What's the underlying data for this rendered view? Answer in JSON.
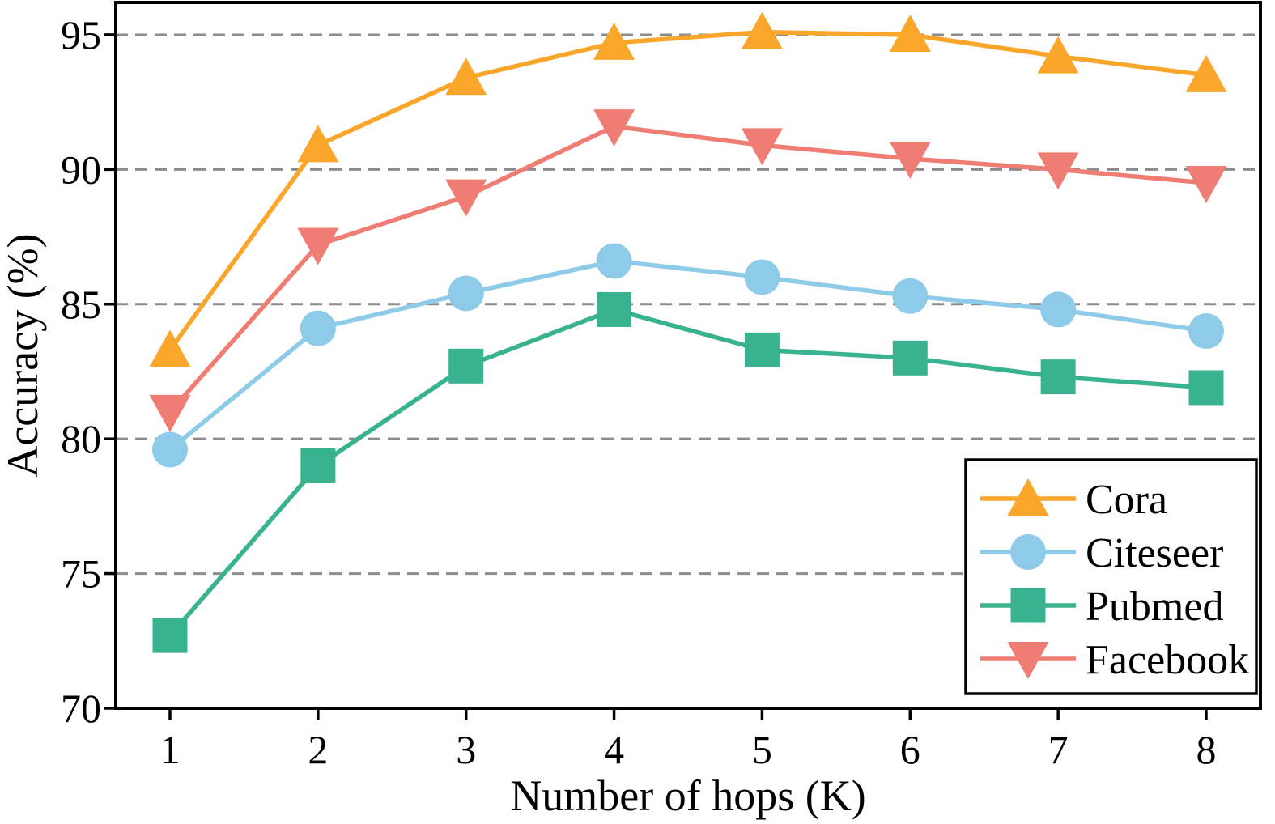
{
  "figure": {
    "background": "#FFFFFF",
    "description": "Line chart of accuracy versus number of hops (K) for four graph datasets"
  },
  "chart_data": {
    "type": "line",
    "title": "",
    "xlabel": "Number of hops (K)",
    "ylabel": "Accuracy (%)",
    "x": [
      1,
      2,
      3,
      4,
      5,
      6,
      7,
      8
    ],
    "xtick_labels": [
      "1",
      "2",
      "3",
      "4",
      "5",
      "6",
      "7",
      "8"
    ],
    "yticks": [
      70,
      75,
      80,
      85,
      90,
      95
    ],
    "ytick_labels": [
      "70",
      "75",
      "80",
      "85",
      "90",
      "95"
    ],
    "ylim": [
      70,
      96.2
    ],
    "grid": {
      "horizontal": true,
      "style": "dashed",
      "color": "#8C8C8C"
    },
    "legend_position": "lower right",
    "series": [
      {
        "name": "Cora",
        "marker": "triangle-up",
        "color": "#F9A62B",
        "values": [
          83.3,
          90.9,
          93.4,
          94.7,
          95.1,
          95.0,
          94.2,
          93.5
        ]
      },
      {
        "name": "Citeseer",
        "marker": "circle",
        "color": "#8DCBE9",
        "values": [
          79.6,
          84.1,
          85.4,
          86.6,
          86.0,
          85.3,
          84.8,
          84.0
        ]
      },
      {
        "name": "Pubmed",
        "marker": "square",
        "color": "#38B28F",
        "values": [
          72.7,
          79.0,
          82.7,
          84.8,
          83.3,
          83.0,
          82.3,
          81.9
        ]
      },
      {
        "name": "Facebook",
        "marker": "triangle-down",
        "color": "#F07D73",
        "values": [
          81.0,
          87.2,
          89.0,
          91.6,
          90.9,
          90.4,
          90.0,
          89.5
        ]
      }
    ],
    "colors": {
      "axis": "#000000",
      "text": "#000000",
      "grid": "#8C8C8C",
      "legend_background": "#FFFFFF"
    }
  }
}
